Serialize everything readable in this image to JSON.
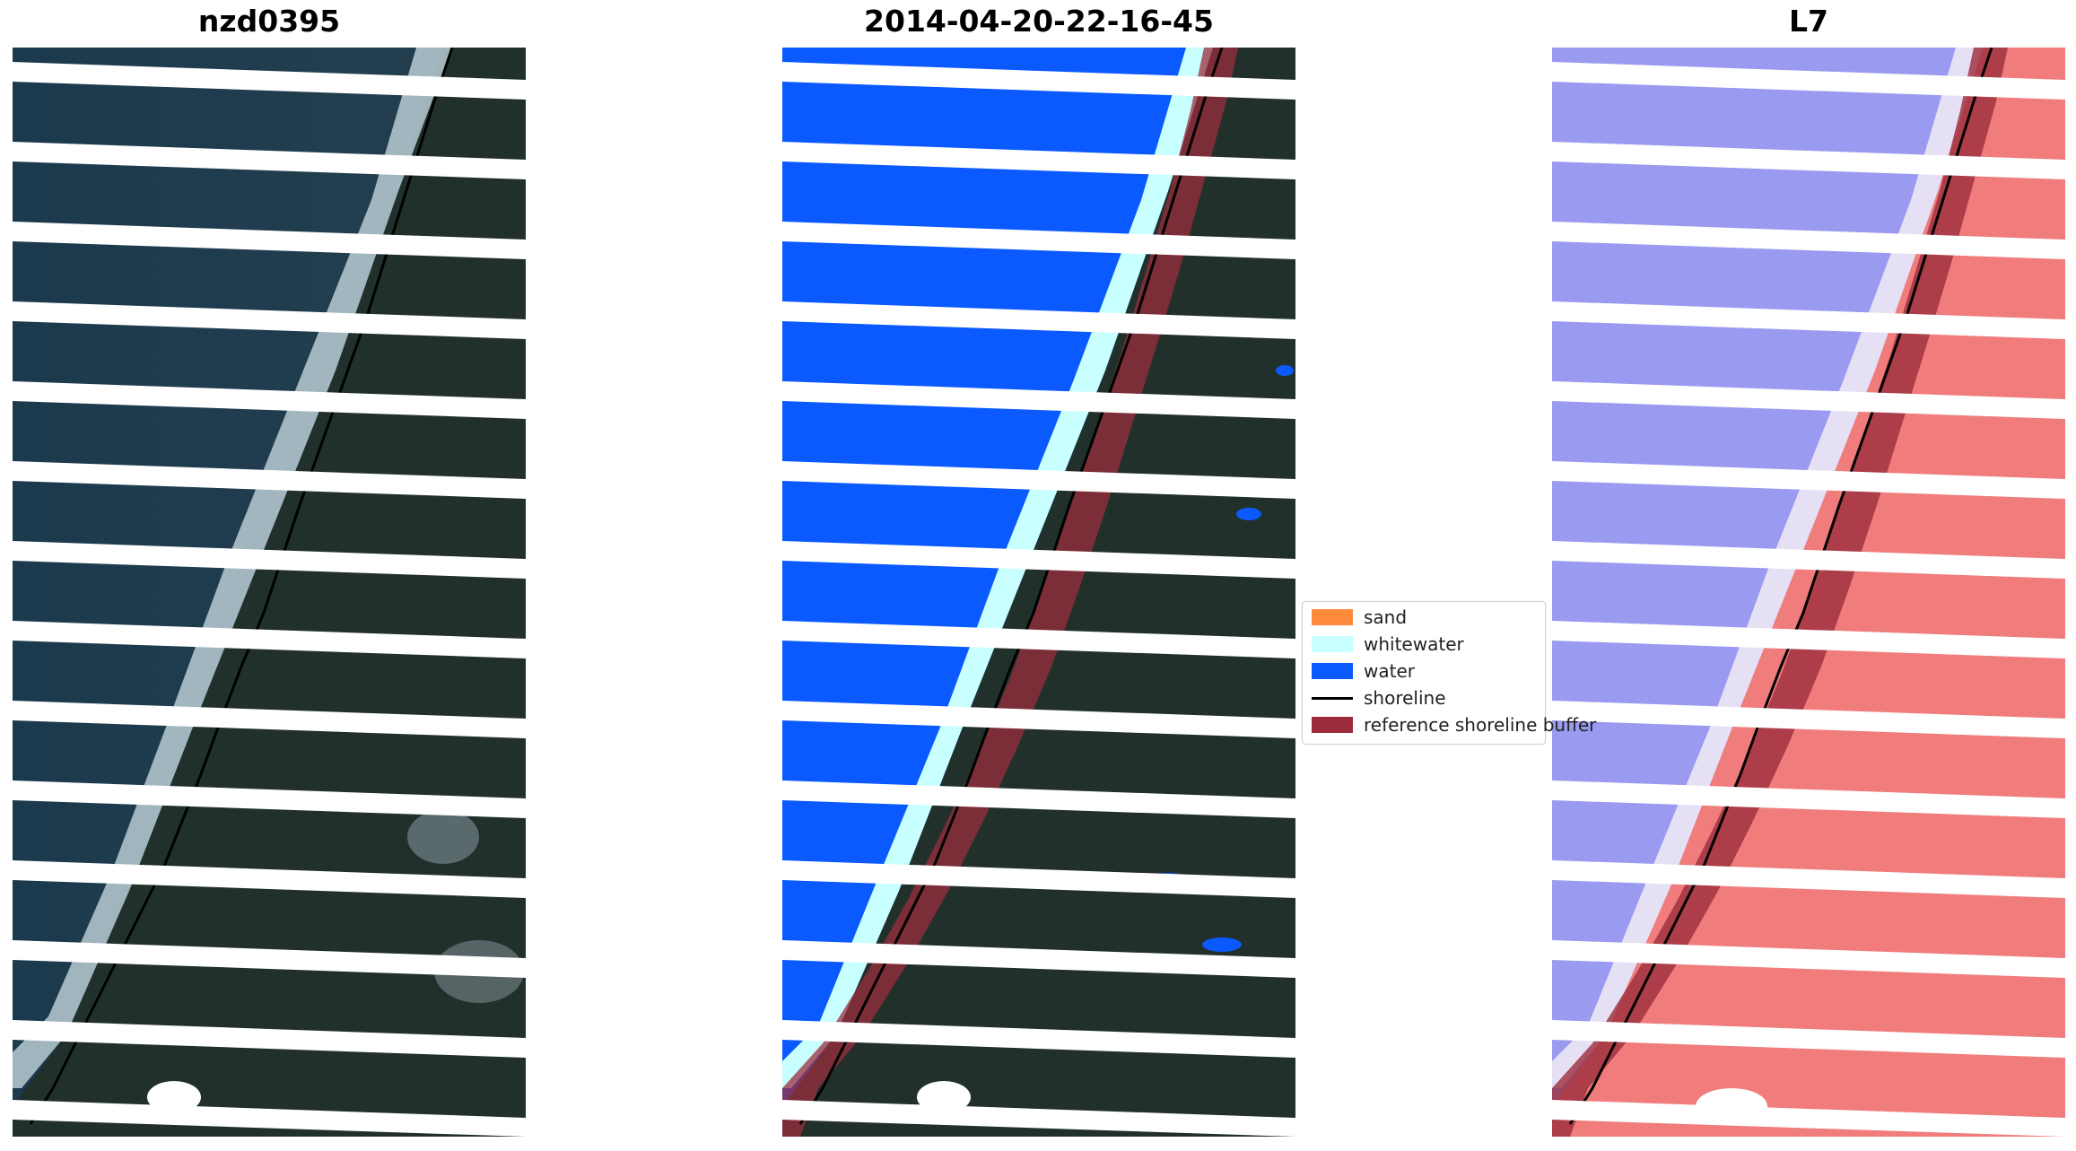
{
  "panels": [
    {
      "title": "nzd0395",
      "kind": "rgb"
    },
    {
      "title": "2014-04-20-22-16-45",
      "kind": "classified"
    },
    {
      "title": "L7",
      "kind": "index"
    }
  ],
  "legend": {
    "items": [
      {
        "label": "sand",
        "color": "#ff8c3c",
        "type": "patch"
      },
      {
        "label": "whitewater",
        "color": "#c8ffff",
        "type": "patch"
      },
      {
        "label": "water",
        "color": "#0a5aff",
        "type": "patch"
      },
      {
        "label": "shoreline",
        "color": "#000000",
        "type": "line"
      },
      {
        "label": "reference shoreline buffer",
        "color": "#9b2d3c",
        "type": "patch"
      }
    ]
  },
  "colors": {
    "ocean": "#1e3a4e",
    "land": "#1f2b2a",
    "surf": "#c8d8df",
    "classified_water": "#0a5aff",
    "whitewater": "#c8ffff",
    "index_water": "#8c8cf0",
    "index_land": "#f07a7a",
    "buffer": "#9b2d3c"
  }
}
